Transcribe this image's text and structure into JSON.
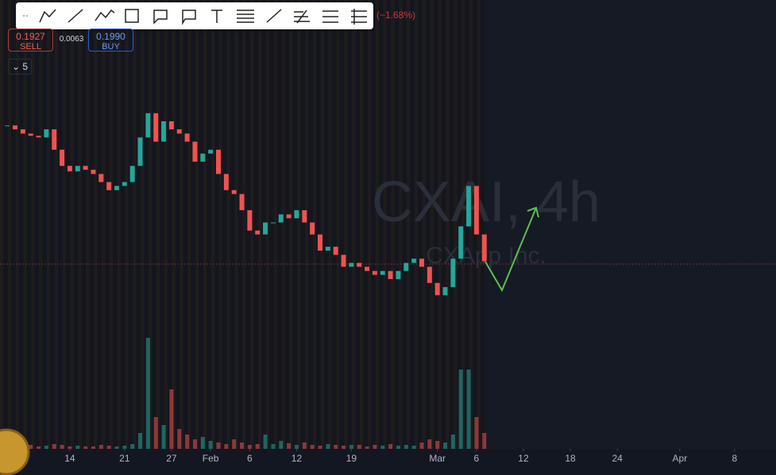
{
  "header": {
    "change": "(−1.68%)",
    "interval": "5"
  },
  "trade": {
    "sell_price": "0.1927",
    "sell_label": "SELL",
    "spread": "0.0063",
    "buy_price": "0.1990",
    "buy_label": "BUY"
  },
  "watermark": {
    "symbol": "CXAI, 4h",
    "company": "CXApp Inc."
  },
  "chart_data": {
    "type": "candlestick",
    "x": [
      5,
      6,
      7,
      8,
      9,
      10,
      11,
      12,
      13,
      14,
      15,
      16,
      17,
      18,
      19,
      20,
      21,
      22,
      23,
      24,
      25,
      26,
      27,
      28,
      29,
      30,
      31,
      32,
      33,
      34,
      35,
      36,
      37,
      38,
      39,
      40,
      41,
      42,
      43,
      44,
      45,
      46,
      47,
      48,
      49,
      50,
      51,
      52,
      53,
      54,
      55,
      56,
      57,
      58,
      59,
      60,
      61,
      62,
      63,
      64,
      65,
      66
    ],
    "close": [
      0.2347,
      0.2335,
      0.2322,
      0.2315,
      0.231,
      0.2335,
      0.2272,
      0.2222,
      0.2205,
      0.2222,
      0.221,
      0.2197,
      0.2172,
      0.2147,
      0.216,
      0.2172,
      0.2222,
      0.231,
      0.2385,
      0.2297,
      0.236,
      0.2335,
      0.2322,
      0.2297,
      0.2235,
      0.226,
      0.2272,
      0.2197,
      0.2147,
      0.2135,
      0.2085,
      0.2022,
      0.201,
      0.2047,
      0.2047,
      0.2072,
      0.206,
      0.2085,
      0.2047,
      0.201,
      0.196,
      0.1972,
      0.1947,
      0.191,
      0.1922,
      0.191,
      0.1897,
      0.1885,
      0.1897,
      0.1872,
      0.1897,
      0.1922,
      0.1935,
      0.191,
      0.186,
      0.1822,
      0.1847,
      0.1935,
      0.2035,
      0.216,
      0.201,
      0.1927
    ],
    "volume": [
      4,
      3,
      3,
      5,
      3,
      4,
      6,
      5,
      3,
      4,
      3,
      3,
      5,
      4,
      3,
      4,
      6,
      20,
      140,
      40,
      30,
      75,
      25,
      18,
      12,
      15,
      10,
      8,
      6,
      12,
      8,
      5,
      6,
      18,
      6,
      10,
      7,
      5,
      8,
      5,
      4,
      6,
      5,
      4,
      5,
      5,
      3,
      5,
      4,
      6,
      4,
      5,
      4,
      8,
      12,
      10,
      8,
      18,
      100,
      100,
      40,
      20
    ],
    "xlim": [
      4.07,
      103.3
    ],
    "ylim": [
      0.1347,
      0.2735
    ],
    "vlim": [
      0,
      150
    ],
    "xticks": [
      {
        "value": 13,
        "label": "14"
      },
      {
        "value": 20,
        "label": "21"
      },
      {
        "value": 26,
        "label": "27"
      },
      {
        "value": 31,
        "label": "Feb"
      },
      {
        "value": 36,
        "label": "6"
      },
      {
        "value": 42,
        "label": "12"
      },
      {
        "value": 49,
        "label": "19"
      },
      {
        "value": 60,
        "label": "Mar"
      },
      {
        "value": 65,
        "label": "6"
      },
      {
        "value": 71,
        "label": "12"
      },
      {
        "value": 77,
        "label": "18"
      },
      {
        "value": 83,
        "label": "24"
      },
      {
        "value": 91,
        "label": "Apr"
      },
      {
        "value": 98,
        "label": "8"
      }
    ],
    "up_color": "#26a69a",
    "down_color": "#ef5350"
  }
}
